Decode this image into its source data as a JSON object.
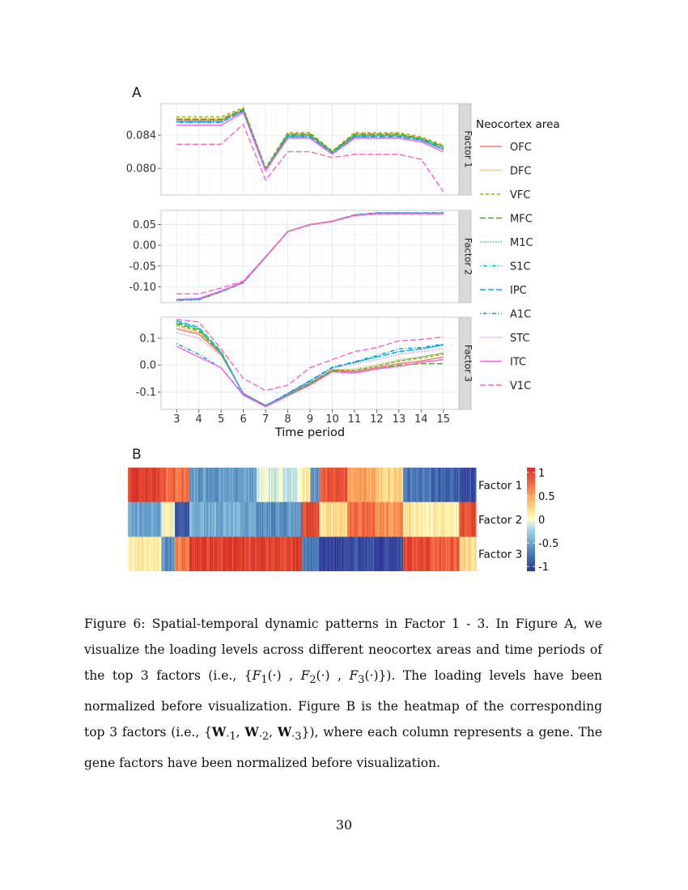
{
  "page": {
    "number": "30"
  },
  "figure": {
    "panel_a_label": "A",
    "panel_b_label": "B"
  },
  "chart_data": [
    {
      "type": "line",
      "panel": "A",
      "xlabel": "Time period",
      "x": [
        3,
        4,
        5,
        6,
        7,
        8,
        9,
        10,
        11,
        12,
        13,
        14,
        15
      ],
      "xlim": [
        2.3,
        15.7
      ],
      "legend": {
        "title": "Neocortex area",
        "placement": "right",
        "entries": [
          {
            "name": "OFC",
            "color": "#F8766D",
            "dash": "solid"
          },
          {
            "name": "DFC",
            "color": "#D89000",
            "dash": "dotted"
          },
          {
            "name": "VFC",
            "color": "#A3A500",
            "dash": "dashed"
          },
          {
            "name": "MFC",
            "color": "#39B600",
            "dash": "longdash"
          },
          {
            "name": "M1C",
            "color": "#00BF7D",
            "dash": "dotted"
          },
          {
            "name": "S1C",
            "color": "#00BFC4",
            "dash": "dotdash"
          },
          {
            "name": "IPC",
            "color": "#00B0F6",
            "dash": "longdash"
          },
          {
            "name": "A1C",
            "color": "#0099E0",
            "dash": "dotdash"
          },
          {
            "name": "STC",
            "color": "#C77CFF",
            "dash": "dotted"
          },
          {
            "name": "ITC",
            "color": "#F564E3",
            "dash": "solid"
          },
          {
            "name": "V1C",
            "color": "#FF62BC",
            "dash": "longdash"
          }
        ]
      },
      "facets": [
        {
          "strip": "Factor 1",
          "ylim": [
            0.0768,
            0.0878
          ],
          "yticks": [
            0.08,
            0.084
          ],
          "ytick_labels": [
            "0.080",
            "0.084"
          ],
          "series": [
            {
              "name": "OFC",
              "values": [
                0.0858,
                0.0858,
                0.0858,
                0.087,
                0.0798,
                0.084,
                0.084,
                0.082,
                0.084,
                0.084,
                0.084,
                0.0836,
                0.0826
              ]
            },
            {
              "name": "DFC",
              "values": [
                0.086,
                0.086,
                0.086,
                0.0872,
                0.08,
                0.0842,
                0.0842,
                0.082,
                0.0842,
                0.0842,
                0.0842,
                0.0837,
                0.0827
              ]
            },
            {
              "name": "VFC",
              "values": [
                0.0862,
                0.0862,
                0.0862,
                0.0873,
                0.0801,
                0.0843,
                0.0843,
                0.0821,
                0.0843,
                0.0843,
                0.0843,
                0.0838,
                0.0828
              ]
            },
            {
              "name": "MFC",
              "values": [
                0.0859,
                0.0859,
                0.0859,
                0.0871,
                0.0799,
                0.0841,
                0.0841,
                0.082,
                0.0841,
                0.0841,
                0.0841,
                0.0836,
                0.0826
              ]
            },
            {
              "name": "M1C",
              "values": [
                0.0857,
                0.0857,
                0.0857,
                0.087,
                0.0799,
                0.084,
                0.084,
                0.0819,
                0.084,
                0.084,
                0.084,
                0.0835,
                0.0825
              ]
            },
            {
              "name": "S1C",
              "values": [
                0.0856,
                0.0856,
                0.0856,
                0.0869,
                0.0799,
                0.0839,
                0.0839,
                0.0819,
                0.0839,
                0.0839,
                0.0839,
                0.0835,
                0.0824
              ]
            },
            {
              "name": "IPC",
              "values": [
                0.0856,
                0.0856,
                0.0856,
                0.0869,
                0.0798,
                0.0838,
                0.0838,
                0.0818,
                0.0838,
                0.0838,
                0.0838,
                0.0834,
                0.0823
              ]
            },
            {
              "name": "A1C",
              "values": [
                0.0855,
                0.0855,
                0.0855,
                0.0869,
                0.0798,
                0.0838,
                0.0838,
                0.0818,
                0.0838,
                0.0838,
                0.0838,
                0.0834,
                0.0823
              ]
            },
            {
              "name": "STC",
              "values": [
                0.0855,
                0.0855,
                0.0855,
                0.0868,
                0.0798,
                0.0837,
                0.0837,
                0.0818,
                0.0837,
                0.0837,
                0.0837,
                0.0833,
                0.0822
              ]
            },
            {
              "name": "ITC",
              "values": [
                0.0852,
                0.0852,
                0.0852,
                0.0867,
                0.0797,
                0.0836,
                0.0836,
                0.0817,
                0.0836,
                0.0836,
                0.0836,
                0.0832,
                0.082
              ]
            },
            {
              "name": "V1C",
              "values": [
                0.0829,
                0.0829,
                0.0829,
                0.0853,
                0.0786,
                0.082,
                0.082,
                0.0813,
                0.0817,
                0.0817,
                0.0817,
                0.0811,
                0.0772
              ]
            }
          ]
        },
        {
          "strip": "Factor 2",
          "ylim": [
            -0.138,
            0.084
          ],
          "yticks": [
            -0.1,
            -0.05,
            0.0,
            0.05
          ],
          "ytick_labels": [
            "-0.10",
            "-0.05",
            "0.00",
            "0.05"
          ],
          "series": [
            {
              "name": "OFC",
              "values": [
                -0.13,
                -0.128,
                -0.11,
                -0.088,
                -0.028,
                0.033,
                0.05,
                0.058,
                0.072,
                0.077,
                0.077,
                0.077,
                0.077
              ]
            },
            {
              "name": "DFC",
              "values": [
                -0.131,
                -0.129,
                -0.111,
                -0.089,
                -0.028,
                0.033,
                0.05,
                0.058,
                0.072,
                0.077,
                0.077,
                0.077,
                0.077
              ]
            },
            {
              "name": "VFC",
              "values": [
                -0.13,
                -0.129,
                -0.111,
                -0.089,
                -0.028,
                0.033,
                0.05,
                0.058,
                0.072,
                0.076,
                0.076,
                0.076,
                0.076
              ]
            },
            {
              "name": "MFC",
              "values": [
                -0.131,
                -0.13,
                -0.111,
                -0.089,
                -0.028,
                0.033,
                0.05,
                0.058,
                0.073,
                0.077,
                0.077,
                0.077,
                0.077
              ]
            },
            {
              "name": "M1C",
              "values": [
                -0.132,
                -0.13,
                -0.112,
                -0.09,
                -0.029,
                0.033,
                0.05,
                0.058,
                0.073,
                0.077,
                0.077,
                0.077,
                0.077
              ]
            },
            {
              "name": "S1C",
              "values": [
                -0.132,
                -0.131,
                -0.112,
                -0.09,
                -0.029,
                0.033,
                0.05,
                0.058,
                0.073,
                0.078,
                0.078,
                0.078,
                0.078
              ]
            },
            {
              "name": "IPC",
              "values": [
                -0.132,
                -0.13,
                -0.112,
                -0.09,
                -0.029,
                0.033,
                0.05,
                0.058,
                0.073,
                0.078,
                0.078,
                0.078,
                0.078
              ]
            },
            {
              "name": "A1C",
              "values": [
                -0.133,
                -0.131,
                -0.112,
                -0.09,
                -0.029,
                0.033,
                0.05,
                0.058,
                0.073,
                0.078,
                0.078,
                0.078,
                0.078
              ]
            },
            {
              "name": "STC",
              "values": [
                -0.131,
                -0.13,
                -0.111,
                -0.089,
                -0.028,
                0.033,
                0.05,
                0.058,
                0.072,
                0.077,
                0.077,
                0.077,
                0.077
              ]
            },
            {
              "name": "ITC",
              "values": [
                -0.13,
                -0.128,
                -0.11,
                -0.088,
                -0.028,
                0.033,
                0.05,
                0.058,
                0.072,
                0.076,
                0.076,
                0.076,
                0.076
              ]
            },
            {
              "name": "V1C",
              "values": [
                -0.117,
                -0.117,
                -0.103,
                -0.086,
                -0.028,
                0.033,
                0.049,
                0.057,
                0.071,
                0.075,
                0.075,
                0.075,
                0.075
              ]
            }
          ]
        },
        {
          "strip": "Factor 3",
          "ylim": [
            -0.165,
            0.178
          ],
          "yticks": [
            -0.1,
            0.0,
            0.1
          ],
          "ytick_labels": [
            "-0.1",
            "0.0",
            "0.1"
          ],
          "series": [
            {
              "name": "OFC",
              "values": [
                0.135,
                0.115,
                0.04,
                -0.105,
                -0.15,
                -0.11,
                -0.07,
                -0.02,
                -0.025,
                -0.01,
                0.005,
                0.015,
                0.03
              ]
            },
            {
              "name": "DFC",
              "values": [
                0.145,
                0.12,
                0.04,
                -0.106,
                -0.15,
                -0.108,
                -0.065,
                -0.018,
                -0.015,
                0.0,
                0.02,
                0.03,
                0.045
              ]
            },
            {
              "name": "VFC",
              "values": [
                0.15,
                0.125,
                0.045,
                -0.106,
                -0.15,
                -0.11,
                -0.068,
                -0.02,
                -0.02,
                -0.005,
                0.015,
                0.025,
                0.04
              ]
            },
            {
              "name": "MFC",
              "values": [
                0.155,
                0.13,
                0.045,
                -0.107,
                -0.151,
                -0.112,
                -0.07,
                -0.022,
                -0.03,
                -0.015,
                0.0,
                0.005,
                0.005
              ]
            },
            {
              "name": "M1C",
              "values": [
                0.16,
                0.135,
                0.048,
                -0.108,
                -0.151,
                -0.11,
                -0.068,
                -0.018,
                -0.02,
                -0.005,
                0.015,
                0.03,
                0.045
              ]
            },
            {
              "name": "S1C",
              "values": [
                0.16,
                0.135,
                0.048,
                -0.108,
                -0.151,
                -0.106,
                -0.06,
                -0.01,
                0.01,
                0.03,
                0.05,
                0.06,
                0.075
              ]
            },
            {
              "name": "IPC",
              "values": [
                0.165,
                0.14,
                0.05,
                -0.108,
                -0.152,
                -0.106,
                -0.06,
                -0.01,
                0.01,
                0.03,
                0.05,
                0.06,
                0.075
              ]
            },
            {
              "name": "A1C",
              "values": [
                0.08,
                0.04,
                -0.01,
                -0.108,
                -0.152,
                -0.105,
                -0.058,
                -0.008,
                0.012,
                0.035,
                0.06,
                0.065,
                0.078
              ]
            },
            {
              "name": "STC",
              "values": [
                0.12,
                0.1,
                0.035,
                -0.106,
                -0.15,
                -0.108,
                -0.062,
                -0.012,
                0.005,
                0.02,
                0.04,
                0.05,
                0.06
              ]
            },
            {
              "name": "ITC",
              "values": [
                0.07,
                0.03,
                -0.01,
                -0.112,
                -0.155,
                -0.115,
                -0.075,
                -0.025,
                -0.03,
                -0.015,
                -0.005,
                0.01,
                0.02
              ]
            },
            {
              "name": "V1C",
              "values": [
                0.17,
                0.16,
                0.06,
                -0.05,
                -0.095,
                -0.075,
                -0.01,
                0.02,
                0.05,
                0.065,
                0.09,
                0.095,
                0.105
              ]
            }
          ]
        }
      ]
    },
    {
      "type": "heatmap",
      "panel": "B",
      "rows": [
        "Factor 1",
        "Factor 2",
        "Factor 3"
      ],
      "colorbar": {
        "ticks": [
          1,
          0.5,
          0,
          -0.5,
          -1
        ],
        "tick_labels": [
          "1",
          "0.5",
          "0",
          "-0.5",
          "-1"
        ],
        "range": [
          -1.1,
          1.1
        ]
      },
      "segments": [
        {
          "n": 30,
          "f1": 1.0,
          "f2": -0.5,
          "f3": 0.1
        },
        {
          "n": 12,
          "f1": 0.8,
          "f2": 0.05,
          "f3": -0.6
        },
        {
          "n": 13,
          "f1": 0.7,
          "f2": -0.95,
          "f3": 0.7
        },
        {
          "n": 60,
          "f1": -0.55,
          "f2": -0.45,
          "f3": 1.0
        },
        {
          "n": 40,
          "f1": -0.1,
          "f2": -0.6,
          "f3": 1.0
        },
        {
          "n": 8,
          "f1": 0.1,
          "f2": 0.95,
          "f3": -0.7
        },
        {
          "n": 8,
          "f1": -0.6,
          "f2": 0.95,
          "f3": -0.7
        },
        {
          "n": 25,
          "f1": 0.85,
          "f2": 0.2,
          "f3": -1.0
        },
        {
          "n": 25,
          "f1": 0.5,
          "f2": 0.75,
          "f3": -0.95
        },
        {
          "n": 25,
          "f1": 0.25,
          "f2": 0.6,
          "f3": -1.0
        },
        {
          "n": 25,
          "f1": -0.7,
          "f2": 0.15,
          "f3": 0.95
        },
        {
          "n": 25,
          "f1": -0.85,
          "f2": 0.1,
          "f3": 0.85
        },
        {
          "n": 15,
          "f1": -1.0,
          "f2": 0.95,
          "f3": 0.25
        }
      ]
    }
  ],
  "caption": {
    "p1": "Figure 6:  Spatial-temporal dynamic patterns in Factor 1 - 3.  In Figure A, we visualize the loading levels across different neocortex areas and time periods of the top 3 factors (i.e., ",
    "f1": "F",
    "s1": "1",
    "f2": "F",
    "s2": "2",
    "f3": "F",
    "s3": "3",
    "p2": "). The loading levels have been normalized before visualization. Figure B is the heatmap of the corresponding top 3 factors (i.e., ",
    "w": "W",
    "ws1": "·1",
    "ws2": "·2",
    "ws3": "·3",
    "p3": "), where each column represents a gene.  The gene factors have been normalized before visualization."
  }
}
